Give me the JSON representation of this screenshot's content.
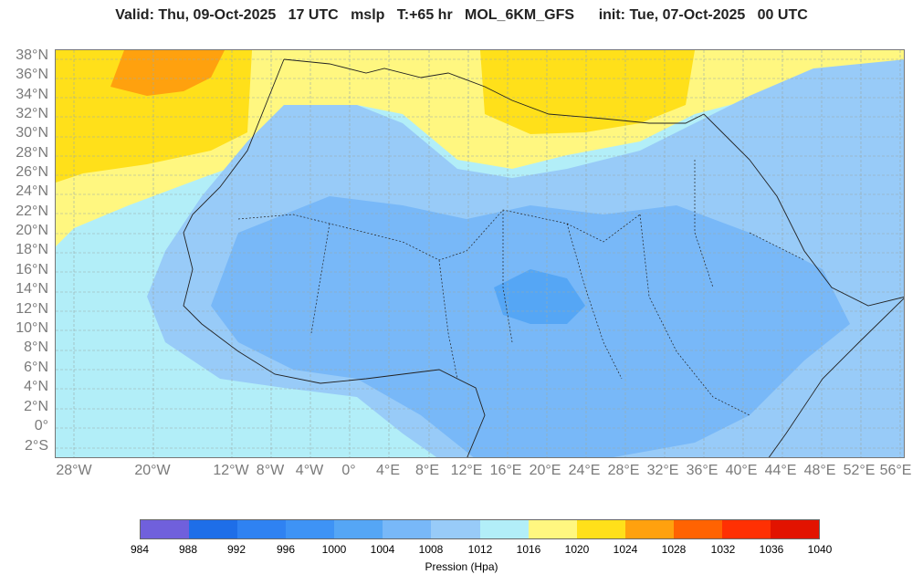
{
  "header": {
    "title": "Valid: Thu, 09-Oct-2025   17 UTC   mslp   T:+65 hr   MOL_6KM_GFS      init: Tue, 07-Oct-2025   00 UTC"
  },
  "map": {
    "lat_labels": [
      "38°N",
      "36°N",
      "34°N",
      "32°N",
      "30°N",
      "28°N",
      "26°N",
      "24°N",
      "22°N",
      "20°N",
      "18°N",
      "16°N",
      "14°N",
      "12°N",
      "10°N",
      "8°N",
      "6°N",
      "4°N",
      "2°N",
      "0°",
      "2°S"
    ],
    "lon_labels": [
      "28°W",
      "20°W",
      "12°W",
      "8°W",
      "4°W",
      "0°",
      "4°E",
      "8°E",
      "12°E",
      "16°E",
      "20°E",
      "24°E",
      "28°E",
      "32°E",
      "36°E",
      "40°E",
      "44°E",
      "48°E",
      "52°E",
      "56°E"
    ]
  },
  "colorbar": {
    "colors": [
      "#7060dc",
      "#1e6ee8",
      "#2f82f2",
      "#3e93f5",
      "#55a6f5",
      "#78b8f8",
      "#98cbf8",
      "#b2eef8",
      "#fff780",
      "#ffe01a",
      "#ffa10e",
      "#ff6302",
      "#ff3003",
      "#e21300"
    ],
    "ticks": [
      "984",
      "988",
      "992",
      "996",
      "1000",
      "1004",
      "1008",
      "1012",
      "1016",
      "1020",
      "1024",
      "1028",
      "1032",
      "1036",
      "1040"
    ],
    "label": "Pression (Hpa)"
  }
}
